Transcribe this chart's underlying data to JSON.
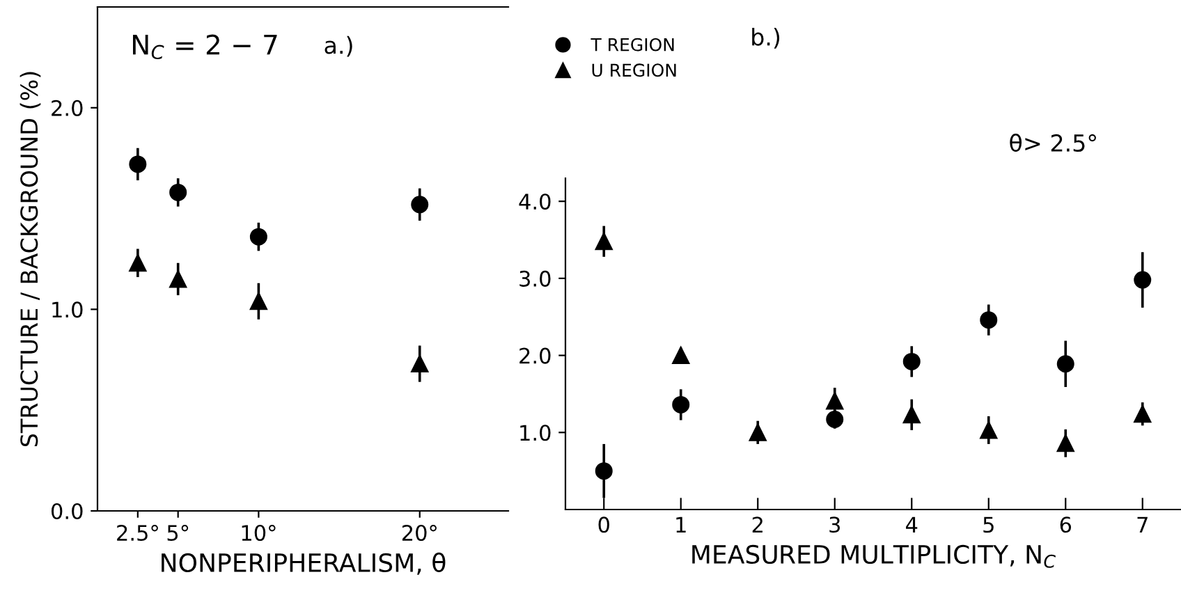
{
  "chart_data": [
    {
      "type": "scatter",
      "xlabel": "NONPERIPHERALISM, θ",
      "ylabel": "STRUCTURE / BACKGROUND (%)",
      "annotations": [
        "N$_{C}$ = 2 − 7",
        "a.)"
      ],
      "x": [
        2.5,
        5,
        10,
        20
      ],
      "series": [
        {
          "name": "T REGION",
          "color": "#000000",
          "marker": "circle",
          "values": [
            1.72,
            1.58,
            1.36,
            1.52
          ],
          "errors": [
            0.08,
            0.07,
            0.07,
            0.08
          ]
        },
        {
          "name": "U REGION",
          "color": "#000000",
          "marker": "triangle",
          "values": [
            1.23,
            1.15,
            1.04,
            0.73
          ],
          "errors": [
            0.07,
            0.08,
            0.09,
            0.09
          ]
        }
      ],
      "xlim": [
        0,
        25.5
      ],
      "ylim": [
        0,
        2.5
      ],
      "xticks": [
        {
          "value": 2.5,
          "label": "2.5°"
        },
        {
          "value": 5,
          "label": "5°"
        },
        {
          "value": 10,
          "label": "10°"
        },
        {
          "value": 20,
          "label": "20°"
        }
      ],
      "yticks": [
        {
          "value": 0,
          "label": "0.0"
        },
        {
          "value": 1,
          "label": "1.0"
        },
        {
          "value": 2,
          "label": "2.0"
        }
      ],
      "grid": false,
      "legend": "top right"
    },
    {
      "type": "scatter",
      "xlabel": "MEASURED MULTIPLICITY, N$_{C}$",
      "annotations": [
        "b.)",
        "θ> 2.5°"
      ],
      "x": [
        0,
        1,
        2,
        3,
        4,
        5,
        6,
        7
      ],
      "series": [
        {
          "color": "#000000",
          "marker": "circle",
          "values": [
            0.5,
            1.36,
            null,
            1.17,
            1.92,
            2.46,
            1.89,
            2.98
          ],
          "errors": [
            0.35,
            0.2,
            null,
            0.12,
            0.2,
            0.2,
            0.3,
            0.36
          ]
        },
        {
          "color": "#000000",
          "marker": "triangle",
          "values": [
            3.48,
            2.0,
            1.0,
            1.41,
            1.23,
            1.03,
            0.86,
            1.24
          ],
          "errors": [
            0.2,
            0.1,
            0.15,
            0.17,
            0.2,
            0.18,
            0.18,
            0.15
          ]
        }
      ],
      "xlim": [
        -0.5,
        7.5
      ],
      "ylim": [
        0,
        4.3
      ],
      "xticks": [
        0,
        1,
        2,
        3,
        4,
        5,
        6,
        7
      ],
      "yticks": [
        {
          "value": 1,
          "label": "1.0"
        },
        {
          "value": 2,
          "label": "2.0"
        },
        {
          "value": 3,
          "label": "3.0"
        },
        {
          "value": 4,
          "label": "4.0"
        }
      ],
      "grid": false
    }
  ]
}
